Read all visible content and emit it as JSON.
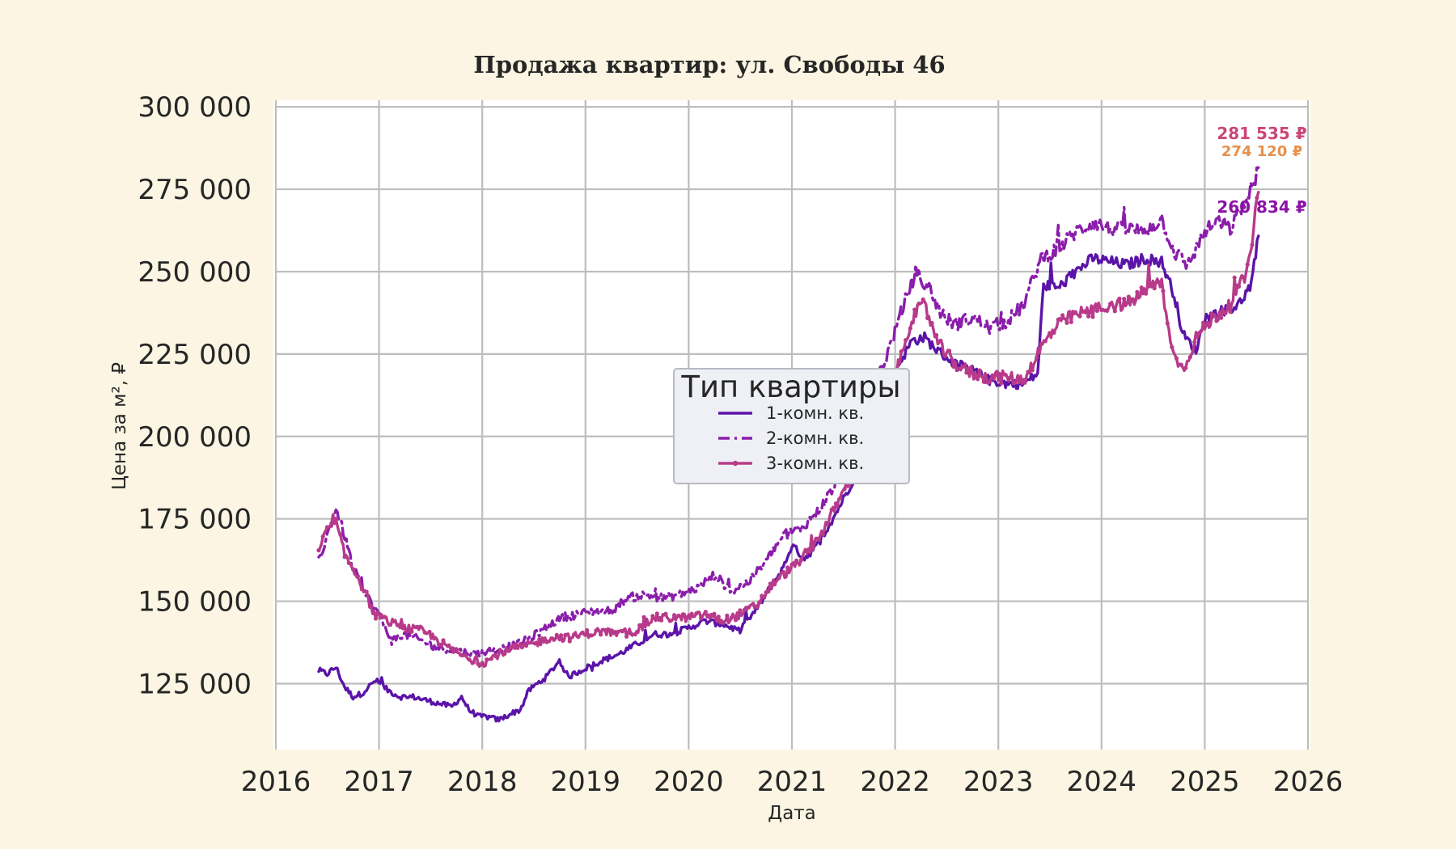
{
  "chart_data": {
    "type": "line",
    "title": "Продажа квартир: ул. Свободы 46",
    "xlabel": "Дата",
    "ylabel": "Цена за м², ₽",
    "xlim": [
      2016,
      2026
    ],
    "ylim": [
      105000,
      302000
    ],
    "x_ticks": [
      "2016",
      "2017",
      "2018",
      "2019",
      "2020",
      "2021",
      "2022",
      "2023",
      "2024",
      "2025",
      "2026"
    ],
    "y_ticks": [
      "125 000",
      "150 000",
      "175 000",
      "200 000",
      "225 000",
      "250 000",
      "275 000",
      "300 000"
    ],
    "y_tick_values": [
      125000,
      150000,
      175000,
      200000,
      225000,
      250000,
      275000,
      300000
    ],
    "grid": true,
    "legend": {
      "title": "Тип квартиры",
      "placement": "center"
    },
    "series": [
      {
        "name": "1-комн. кв.",
        "color": "#5b14a8",
        "style": "solid",
        "points": [
          [
            "2016-06-01",
            129000
          ],
          [
            "2016-07-01",
            128000
          ],
          [
            "2016-08-01",
            130000
          ],
          [
            "2016-09-01",
            124000
          ],
          [
            "2016-10-01",
            121000
          ],
          [
            "2016-11-01",
            122000
          ],
          [
            "2016-12-20",
            126000
          ],
          [
            "2017-02-01",
            123000
          ],
          [
            "2017-03-15",
            121000
          ],
          [
            "2017-05-01",
            121000
          ],
          [
            "2017-06-15",
            120000
          ],
          [
            "2017-08-01",
            119000
          ],
          [
            "2017-09-15",
            118000
          ],
          [
            "2017-10-20",
            121000
          ],
          [
            "2017-11-15",
            117000
          ],
          [
            "2017-12-20",
            115000
          ],
          [
            "2018-01-15",
            115000
          ],
          [
            "2018-03-01",
            114000
          ],
          [
            "2018-04-15",
            116000
          ],
          [
            "2018-05-15",
            117000
          ],
          [
            "2018-06-15",
            123000
          ],
          [
            "2018-07-15",
            125000
          ],
          [
            "2018-08-15",
            127000
          ],
          [
            "2018-10-01",
            132000
          ],
          [
            "2018-11-01",
            127000
          ],
          [
            "2018-12-15",
            129000
          ],
          [
            "2019-03-01",
            132000
          ],
          [
            "2019-05-01",
            134000
          ],
          [
            "2019-07-01",
            137000
          ],
          [
            "2019-09-01",
            140000
          ],
          [
            "2019-11-01",
            140000
          ],
          [
            "2020-01-01",
            142000
          ],
          [
            "2020-03-01",
            144000
          ],
          [
            "2020-05-01",
            143000
          ],
          [
            "2020-07-01",
            141000
          ],
          [
            "2020-09-01",
            148000
          ],
          [
            "2020-10-15",
            154000
          ],
          [
            "2020-12-01",
            160000
          ],
          [
            "2021-01-01",
            167000
          ],
          [
            "2021-02-15",
            163000
          ],
          [
            "2021-04-01",
            167000
          ],
          [
            "2021-06-01",
            176000
          ],
          [
            "2021-08-01",
            186000
          ],
          [
            "2021-10-01",
            199000
          ],
          [
            "2021-12-01",
            213000
          ],
          [
            "2022-01-15",
            222000
          ],
          [
            "2022-03-01",
            229000
          ],
          [
            "2022-04-15",
            230000
          ],
          [
            "2022-06-01",
            226000
          ],
          [
            "2022-08-01",
            222000
          ],
          [
            "2022-10-01",
            220000
          ],
          [
            "2022-12-01",
            217000
          ],
          [
            "2023-02-01",
            216000
          ],
          [
            "2023-04-01",
            216000
          ],
          [
            "2023-05-20",
            219000
          ],
          [
            "2023-06-10",
            246000
          ],
          [
            "2023-08-01",
            245000
          ],
          [
            "2023-10-01",
            250000
          ],
          [
            "2023-12-01",
            254000
          ],
          [
            "2024-02-01",
            253000
          ],
          [
            "2024-04-01",
            252000
          ],
          [
            "2024-06-01",
            254000
          ],
          [
            "2024-08-01",
            253000
          ],
          [
            "2024-09-15",
            243000
          ],
          [
            "2024-10-15",
            231000
          ],
          [
            "2024-12-01",
            226000
          ],
          [
            "2025-01-01",
            236000
          ],
          [
            "2025-03-01",
            238000
          ],
          [
            "2025-05-01",
            240000
          ],
          [
            "2025-06-15",
            246000
          ],
          [
            "2025-07-10",
            260834
          ]
        ]
      },
      {
        "name": "2-комн. кв.",
        "color": "#8b1eab",
        "style": "dashdot",
        "points": [
          [
            "2016-06-01",
            162000
          ],
          [
            "2016-07-01",
            170000
          ],
          [
            "2016-08-01",
            178000
          ],
          [
            "2016-09-01",
            170000
          ],
          [
            "2016-10-01",
            160000
          ],
          [
            "2016-11-15",
            152000
          ],
          [
            "2017-01-01",
            146000
          ],
          [
            "2017-02-15",
            138000
          ],
          [
            "2017-04-01",
            140000
          ],
          [
            "2017-06-01",
            138000
          ],
          [
            "2017-08-01",
            136000
          ],
          [
            "2017-10-01",
            135000
          ],
          [
            "2017-12-01",
            134000
          ],
          [
            "2018-02-01",
            135000
          ],
          [
            "2018-04-01",
            136000
          ],
          [
            "2018-06-01",
            138000
          ],
          [
            "2018-08-01",
            141000
          ],
          [
            "2018-10-01",
            145000
          ],
          [
            "2018-12-01",
            146000
          ],
          [
            "2019-02-01",
            147000
          ],
          [
            "2019-04-01",
            147000
          ],
          [
            "2019-06-01",
            151000
          ],
          [
            "2019-08-01",
            152000
          ],
          [
            "2019-10-01",
            151000
          ],
          [
            "2019-12-01",
            152000
          ],
          [
            "2020-02-01",
            154000
          ],
          [
            "2020-04-01",
            158000
          ],
          [
            "2020-06-01",
            153000
          ],
          [
            "2020-08-01",
            156000
          ],
          [
            "2020-10-01",
            162000
          ],
          [
            "2020-12-01",
            170000
          ],
          [
            "2021-02-01",
            172000
          ],
          [
            "2021-04-01",
            177000
          ],
          [
            "2021-06-01",
            185000
          ],
          [
            "2021-08-01",
            196000
          ],
          [
            "2021-10-01",
            212000
          ],
          [
            "2021-12-01",
            224000
          ],
          [
            "2022-02-01",
            240000
          ],
          [
            "2022-03-15",
            250000
          ],
          [
            "2022-05-01",
            245000
          ],
          [
            "2022-06-15",
            237000
          ],
          [
            "2022-08-01",
            234000
          ],
          [
            "2022-10-01",
            236000
          ],
          [
            "2022-12-01",
            233000
          ],
          [
            "2023-02-01",
            235000
          ],
          [
            "2023-04-01",
            240000
          ],
          [
            "2023-06-01",
            254000
          ],
          [
            "2023-08-01",
            257000
          ],
          [
            "2023-10-01",
            262000
          ],
          [
            "2023-12-01",
            265000
          ],
          [
            "2024-02-01",
            263000
          ],
          [
            "2024-04-01",
            263000
          ],
          [
            "2024-06-01",
            262000
          ],
          [
            "2024-08-01",
            266000
          ],
          [
            "2024-09-15",
            256000
          ],
          [
            "2024-11-01",
            252000
          ],
          [
            "2025-01-01",
            262000
          ],
          [
            "2025-02-15",
            265000
          ],
          [
            "2025-04-01",
            263000
          ],
          [
            "2025-06-01",
            272000
          ],
          [
            "2025-07-10",
            281535
          ]
        ]
      },
      {
        "name": "3-комн. кв.",
        "color": "#b83a8a",
        "style": "solid-markers",
        "points": [
          [
            "2016-06-01",
            165000
          ],
          [
            "2016-07-01",
            172000
          ],
          [
            "2016-08-01",
            174000
          ],
          [
            "2016-09-01",
            164000
          ],
          [
            "2016-10-01",
            160000
          ],
          [
            "2016-11-01",
            155000
          ],
          [
            "2016-12-15",
            146000
          ],
          [
            "2017-02-01",
            144000
          ],
          [
            "2017-04-01",
            142000
          ],
          [
            "2017-06-01",
            141000
          ],
          [
            "2017-07-15",
            139000
          ],
          [
            "2017-09-01",
            136000
          ],
          [
            "2017-11-01",
            133000
          ],
          [
            "2018-01-01",
            131000
          ],
          [
            "2018-03-01",
            134000
          ],
          [
            "2018-05-01",
            136000
          ],
          [
            "2018-07-01",
            137000
          ],
          [
            "2018-09-01",
            139000
          ],
          [
            "2018-11-01",
            139000
          ],
          [
            "2019-01-01",
            140000
          ],
          [
            "2019-03-01",
            141000
          ],
          [
            "2019-05-01",
            140000
          ],
          [
            "2019-07-01",
            141000
          ],
          [
            "2019-09-01",
            145000
          ],
          [
            "2019-11-01",
            145000
          ],
          [
            "2020-01-01",
            145000
          ],
          [
            "2020-03-01",
            146000
          ],
          [
            "2020-05-01",
            144000
          ],
          [
            "2020-07-01",
            146000
          ],
          [
            "2020-09-01",
            149000
          ],
          [
            "2020-11-01",
            156000
          ],
          [
            "2021-01-01",
            160000
          ],
          [
            "2021-03-01",
            165000
          ],
          [
            "2021-05-01",
            173000
          ],
          [
            "2021-07-01",
            183000
          ],
          [
            "2021-09-01",
            193000
          ],
          [
            "2021-11-01",
            206000
          ],
          [
            "2022-01-01",
            218000
          ],
          [
            "2022-03-01",
            236000
          ],
          [
            "2022-04-15",
            240000
          ],
          [
            "2022-06-01",
            228000
          ],
          [
            "2022-08-01",
            222000
          ],
          [
            "2022-10-01",
            219000
          ],
          [
            "2022-12-01",
            218000
          ],
          [
            "2023-02-01",
            218000
          ],
          [
            "2023-04-01",
            217000
          ],
          [
            "2023-06-01",
            227000
          ],
          [
            "2023-08-01",
            234000
          ],
          [
            "2023-10-01",
            237000
          ],
          [
            "2023-12-01",
            238000
          ],
          [
            "2024-02-01",
            240000
          ],
          [
            "2024-04-01",
            240000
          ],
          [
            "2024-06-01",
            244000
          ],
          [
            "2024-08-01",
            247000
          ],
          [
            "2024-09-01",
            228000
          ],
          [
            "2024-10-15",
            220000
          ],
          [
            "2024-12-01",
            230000
          ],
          [
            "2025-02-01",
            236000
          ],
          [
            "2025-04-01",
            240000
          ],
          [
            "2025-06-01",
            250000
          ],
          [
            "2025-07-10",
            274120
          ]
        ]
      }
    ],
    "end_labels": [
      {
        "text": "281 535 ₽",
        "color": "#cc4577"
      },
      {
        "text": "274 120 ₽",
        "color": "#e8904a"
      },
      {
        "text": "260 834 ₽",
        "color": "#8b12a8"
      }
    ]
  }
}
